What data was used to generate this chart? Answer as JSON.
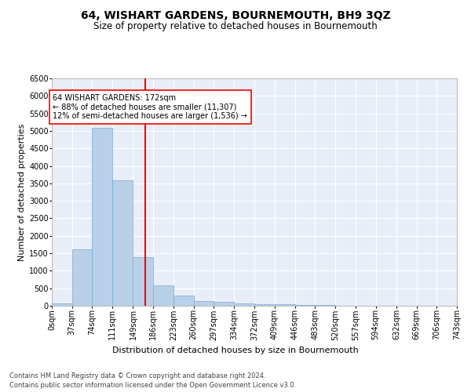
{
  "title": "64, WISHART GARDENS, BOURNEMOUTH, BH9 3QZ",
  "subtitle": "Size of property relative to detached houses in Bournemouth",
  "xlabel": "Distribution of detached houses by size in Bournemouth",
  "ylabel": "Number of detached properties",
  "bar_color": "#b8d0e8",
  "bar_edge_color": "#7aaad0",
  "bg_color": "#e8eef8",
  "grid_color": "#ffffff",
  "red_line_x": 172,
  "bin_edges": [
    0,
    37,
    74,
    111,
    149,
    186,
    223,
    260,
    297,
    334,
    372,
    409,
    446,
    483,
    520,
    557,
    594,
    632,
    669,
    706,
    743
  ],
  "bar_heights": [
    75,
    1620,
    5080,
    3580,
    1400,
    590,
    290,
    145,
    105,
    75,
    55,
    40,
    20,
    15,
    8,
    5,
    3,
    2,
    1,
    1
  ],
  "annotation_line1": "64 WISHART GARDENS: 172sqm",
  "annotation_line2": "← 88% of detached houses are smaller (11,307)",
  "annotation_line3": "12% of semi-detached houses are larger (1,536) →",
  "footnote1": "Contains HM Land Registry data © Crown copyright and database right 2024.",
  "footnote2": "Contains public sector information licensed under the Open Government Licence v3.0.",
  "ylim": [
    0,
    6500
  ],
  "xlim": [
    0,
    743
  ],
  "title_fontsize": 10,
  "subtitle_fontsize": 8.5,
  "xlabel_fontsize": 8,
  "ylabel_fontsize": 8,
  "tick_fontsize": 7,
  "annotation_fontsize": 7,
  "footnote_fontsize": 6
}
